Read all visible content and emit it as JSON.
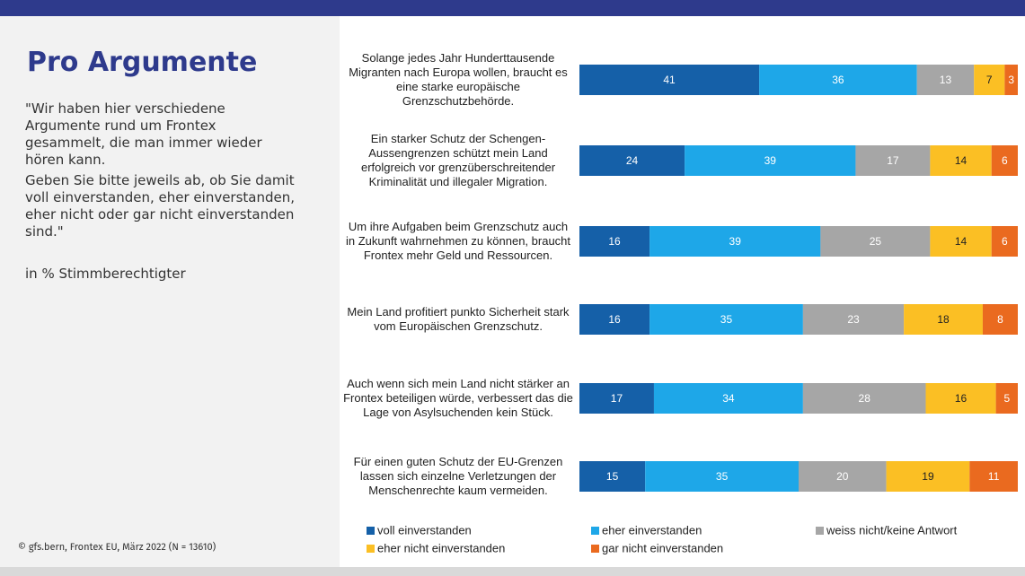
{
  "chart_data": {
    "type": "bar",
    "orientation": "horizontal",
    "stacked": true,
    "title": "Pro Argumente",
    "description": [
      "\"Wir haben hier verschiedene Argumente rund um Frontex gesammelt, die man immer wieder hören kann.",
      "Geben Sie bitte jeweils ab, ob Sie damit voll einverstanden, eher einverstanden, eher nicht oder gar nicht einverstanden sind.\""
    ],
    "unit_note": "in % Stimmberechtigter",
    "source": "© gfs.bern, Frontex EU, März 2022 (N = 13610)",
    "categories": [
      "Solange jedes Jahr Hunderttausende Migranten nach Europa wollen, braucht es eine starke europäische Grenzschutzbehörde.",
      "Ein starker Schutz der Schengen-Aussengrenzen schützt mein Land erfolgreich vor grenzüberschreitender Kriminalität und illegaler Migration.",
      "Um ihre Aufgaben beim Grenzschutz auch in Zukunft wahrnehmen zu können, braucht Frontex mehr Geld und Ressourcen.",
      "Mein Land profitiert punkto Sicherheit stark vom Europäischen Grenzschutz.",
      "Auch wenn sich mein Land nicht stärker an Frontex beteiligen würde, verbessert das die Lage von Asylsuchenden kein Stück.",
      "Für einen guten Schutz der EU-Grenzen lassen sich einzelne Verletzungen der Menschenrechte kaum vermeiden."
    ],
    "series": [
      {
        "name": "voll einverstanden",
        "color": "#1560a8",
        "values": [
          41,
          24,
          16,
          16,
          17,
          15
        ]
      },
      {
        "name": "eher einverstanden",
        "color": "#1ea7e8",
        "values": [
          36,
          39,
          39,
          35,
          34,
          35
        ]
      },
      {
        "name": "weiss nicht/keine Antwort",
        "color": "#a6a6a6",
        "values": [
          13,
          17,
          25,
          23,
          28,
          20
        ]
      },
      {
        "name": "eher nicht einverstanden",
        "color": "#fbbf24",
        "values": [
          7,
          14,
          14,
          18,
          16,
          19
        ]
      },
      {
        "name": "gar nicht einverstanden",
        "color": "#ea6a1f",
        "values": [
          3,
          6,
          6,
          8,
          5,
          11
        ]
      }
    ],
    "xlim": [
      0,
      100
    ]
  }
}
